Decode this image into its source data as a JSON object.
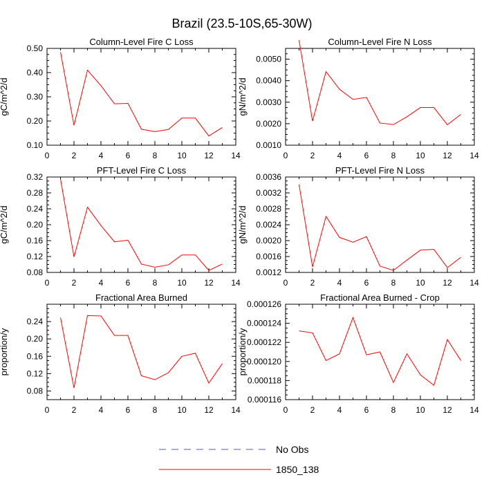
{
  "figure": {
    "title": "Brazil (23.5-10S,65-30W)"
  },
  "legend": {
    "entries": [
      {
        "label": "No Obs",
        "color": "#5555cc",
        "dashed": true
      },
      {
        "label": "1850_138",
        "color": "#ff0000",
        "dashed": false
      }
    ]
  },
  "chart_data": [
    {
      "type": "line",
      "title": "Column-Level Fire C Loss",
      "xlabel": "",
      "ylabel": "gC/m^2/d",
      "xlim": [
        0,
        14
      ],
      "ylim": [
        0.1,
        0.5
      ],
      "xticks": [
        "0",
        "2",
        "4",
        "6",
        "8",
        "10",
        "12",
        "14"
      ],
      "yticks": [
        "0.10",
        "0.20",
        "0.30",
        "0.40",
        "0.50"
      ],
      "grid": false,
      "series": [
        {
          "name": "1850_138",
          "color": "#ff0000",
          "x": [
            1,
            2,
            3,
            4,
            5,
            6,
            7,
            8,
            9,
            10,
            11,
            12,
            13
          ],
          "y": [
            0.485,
            0.182,
            0.41,
            0.346,
            0.271,
            0.273,
            0.166,
            0.156,
            0.165,
            0.212,
            0.212,
            0.138,
            0.173
          ]
        }
      ]
    },
    {
      "type": "line",
      "title": "Column-Level Fire N Loss",
      "xlabel": "",
      "ylabel": "gN/m^2/d",
      "xlim": [
        0,
        14
      ],
      "ylim": [
        0.001,
        0.0055
      ],
      "xticks": [
        "0",
        "2",
        "4",
        "6",
        "8",
        "10",
        "12",
        "14"
      ],
      "yticks": [
        "0.0010",
        "0.0020",
        "0.0030",
        "0.0040",
        "0.0050"
      ],
      "grid": false,
      "series": [
        {
          "name": "1850_138",
          "color": "#ff0000",
          "x": [
            1,
            2,
            3,
            4,
            5,
            6,
            7,
            8,
            9,
            10,
            11,
            12,
            13
          ],
          "y": [
            0.00588,
            0.00212,
            0.00442,
            0.0036,
            0.00313,
            0.00322,
            0.00203,
            0.00196,
            0.00232,
            0.00275,
            0.00275,
            0.00195,
            0.00243
          ]
        }
      ]
    },
    {
      "type": "line",
      "title": "PFT-Level Fire C Loss",
      "xlabel": "",
      "ylabel": "gC/m^2/d",
      "xlim": [
        0,
        14
      ],
      "ylim": [
        0.08,
        0.32
      ],
      "xticks": [
        "0",
        "2",
        "4",
        "6",
        "8",
        "10",
        "12",
        "14"
      ],
      "yticks": [
        "0.08",
        "0.12",
        "0.16",
        "0.20",
        "0.24",
        "0.28",
        "0.32"
      ],
      "grid": false,
      "series": [
        {
          "name": "1850_138",
          "color": "#ff0000",
          "x": [
            1,
            2,
            3,
            4,
            5,
            6,
            7,
            8,
            9,
            10,
            11,
            12,
            13
          ],
          "y": [
            0.315,
            0.119,
            0.244,
            0.198,
            0.157,
            0.161,
            0.101,
            0.093,
            0.099,
            0.124,
            0.124,
            0.085,
            0.101
          ]
        }
      ]
    },
    {
      "type": "line",
      "title": "PFT-Level Fire N Loss",
      "xlabel": "",
      "ylabel": "gN/m^2/d",
      "xlim": [
        0,
        14
      ],
      "ylim": [
        0.0012,
        0.0036
      ],
      "xticks": [
        "0",
        "2",
        "4",
        "6",
        "8",
        "10",
        "12",
        "14"
      ],
      "yticks": [
        "0.0012",
        "0.0016",
        "0.0020",
        "0.0024",
        "0.0028",
        "0.0032",
        "0.0036"
      ],
      "grid": false,
      "series": [
        {
          "name": "1850_138",
          "color": "#ff0000",
          "x": [
            1,
            2,
            3,
            4,
            5,
            6,
            7,
            8,
            9,
            10,
            11,
            12,
            13
          ],
          "y": [
            0.00341,
            0.00134,
            0.00261,
            0.00208,
            0.00196,
            0.0021,
            0.00136,
            0.00125,
            0.00151,
            0.00176,
            0.00178,
            0.00132,
            0.00158
          ]
        }
      ]
    },
    {
      "type": "line",
      "title": "Fractional Area Burned",
      "xlabel": "",
      "ylabel": "proportion/y",
      "xlim": [
        0,
        14
      ],
      "ylim": [
        0.06,
        0.28
      ],
      "xticks": [
        "0",
        "2",
        "4",
        "6",
        "8",
        "10",
        "12",
        "14"
      ],
      "yticks": [
        "0.08",
        "0.12",
        "0.16",
        "0.20",
        "0.24"
      ],
      "grid": false,
      "series": [
        {
          "name": "1850_138",
          "color": "#ff0000",
          "x": [
            1,
            2,
            3,
            4,
            5,
            6,
            7,
            8,
            9,
            10,
            11,
            12,
            13
          ],
          "y": [
            0.249,
            0.087,
            0.254,
            0.253,
            0.208,
            0.208,
            0.115,
            0.106,
            0.122,
            0.16,
            0.167,
            0.098,
            0.143
          ]
        }
      ]
    },
    {
      "type": "line",
      "title": "Fractional Area Burned - Crop",
      "xlabel": "",
      "ylabel": "proportion/y",
      "xlim": [
        0,
        14
      ],
      "ylim": [
        0.000116,
        0.000126
      ],
      "xticks": [
        "0",
        "2",
        "4",
        "6",
        "8",
        "10",
        "12",
        "14"
      ],
      "yticks": [
        "0.000116",
        "0.000118",
        "0.000120",
        "0.000122",
        "0.000124",
        "0.000126"
      ],
      "grid": false,
      "series": [
        {
          "name": "1850_138",
          "color": "#ff0000",
          "x": [
            1,
            2,
            3,
            4,
            5,
            6,
            7,
            8,
            9,
            10,
            11,
            12,
            13
          ],
          "y": [
            0.0001232,
            0.000123,
            0.0001201,
            0.0001208,
            0.0001246,
            0.0001207,
            0.000121,
            0.0001178,
            0.0001208,
            0.0001186,
            0.0001175,
            0.0001223,
            0.0001201
          ]
        }
      ]
    }
  ]
}
